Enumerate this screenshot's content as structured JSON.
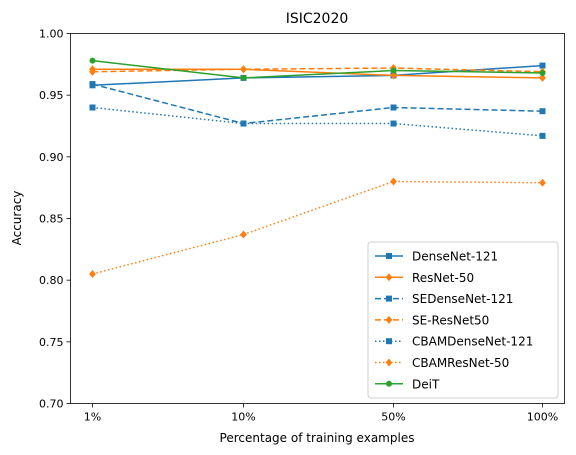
{
  "chart_data": {
    "type": "line",
    "title": "ISIC2020",
    "xlabel": "Percentage of training examples",
    "ylabel": "Accuracy",
    "categories": [
      "1%",
      "10%",
      "50%",
      "100%"
    ],
    "ylim": [
      0.7,
      1.0
    ],
    "yticks": [
      "0.70",
      "0.75",
      "0.80",
      "0.85",
      "0.90",
      "0.95",
      "1.00"
    ],
    "legend_position": "lower-right",
    "series": [
      {
        "name": "DenseNet-121",
        "values": [
          0.958,
          0.964,
          0.966,
          0.974
        ],
        "color": "#1f77b4",
        "dash": "solid",
        "marker": "square"
      },
      {
        "name": "ResNet-50",
        "values": [
          0.971,
          0.971,
          0.966,
          0.964
        ],
        "color": "#ff7f0e",
        "dash": "solid",
        "marker": "diamond"
      },
      {
        "name": "SEDenseNet-121",
        "values": [
          0.959,
          0.927,
          0.94,
          0.937
        ],
        "color": "#1f77b4",
        "dash": "dashed",
        "marker": "square"
      },
      {
        "name": "SE-ResNet50",
        "values": [
          0.969,
          0.971,
          0.972,
          0.969
        ],
        "color": "#ff7f0e",
        "dash": "dashed",
        "marker": "diamond"
      },
      {
        "name": "CBAMDenseNet-121",
        "values": [
          0.94,
          0.927,
          0.927,
          0.917
        ],
        "color": "#1f77b4",
        "dash": "dotted",
        "marker": "square"
      },
      {
        "name": "CBAMResNet-50",
        "values": [
          0.805,
          0.837,
          0.88,
          0.879
        ],
        "color": "#ff7f0e",
        "dash": "dotted",
        "marker": "diamond"
      },
      {
        "name": "DeiT",
        "values": [
          0.978,
          0.964,
          0.97,
          0.968
        ],
        "color": "#2ca02c",
        "dash": "solid",
        "marker": "circle"
      }
    ]
  }
}
